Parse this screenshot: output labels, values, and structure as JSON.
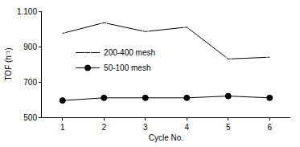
{
  "chart_data": {
    "type": "line",
    "x_label": "Cycle No.",
    "y_label": "TOF (h⁻¹)",
    "x": [
      1,
      2,
      3,
      4,
      5,
      6
    ],
    "series": [
      {
        "name": "200-400 mesh",
        "color": "#000000",
        "marker": "circle-open",
        "values": [
          975,
          1035,
          985,
          1010,
          830,
          840
        ]
      },
      {
        "name": "50-100 mesh",
        "color": "#000000",
        "marker": "circle",
        "values": [
          595,
          610,
          610,
          610,
          620,
          610
        ]
      }
    ],
    "xlim": [
      0.5,
      6.5
    ],
    "xticks": [
      1,
      2,
      3,
      4,
      5,
      6
    ],
    "ylim": [
      500,
      1100
    ],
    "yticks": [
      500,
      700,
      900,
      {
        "value": 1100,
        "label": "1.100"
      }
    ],
    "grid": false,
    "legend": "upper left"
  }
}
